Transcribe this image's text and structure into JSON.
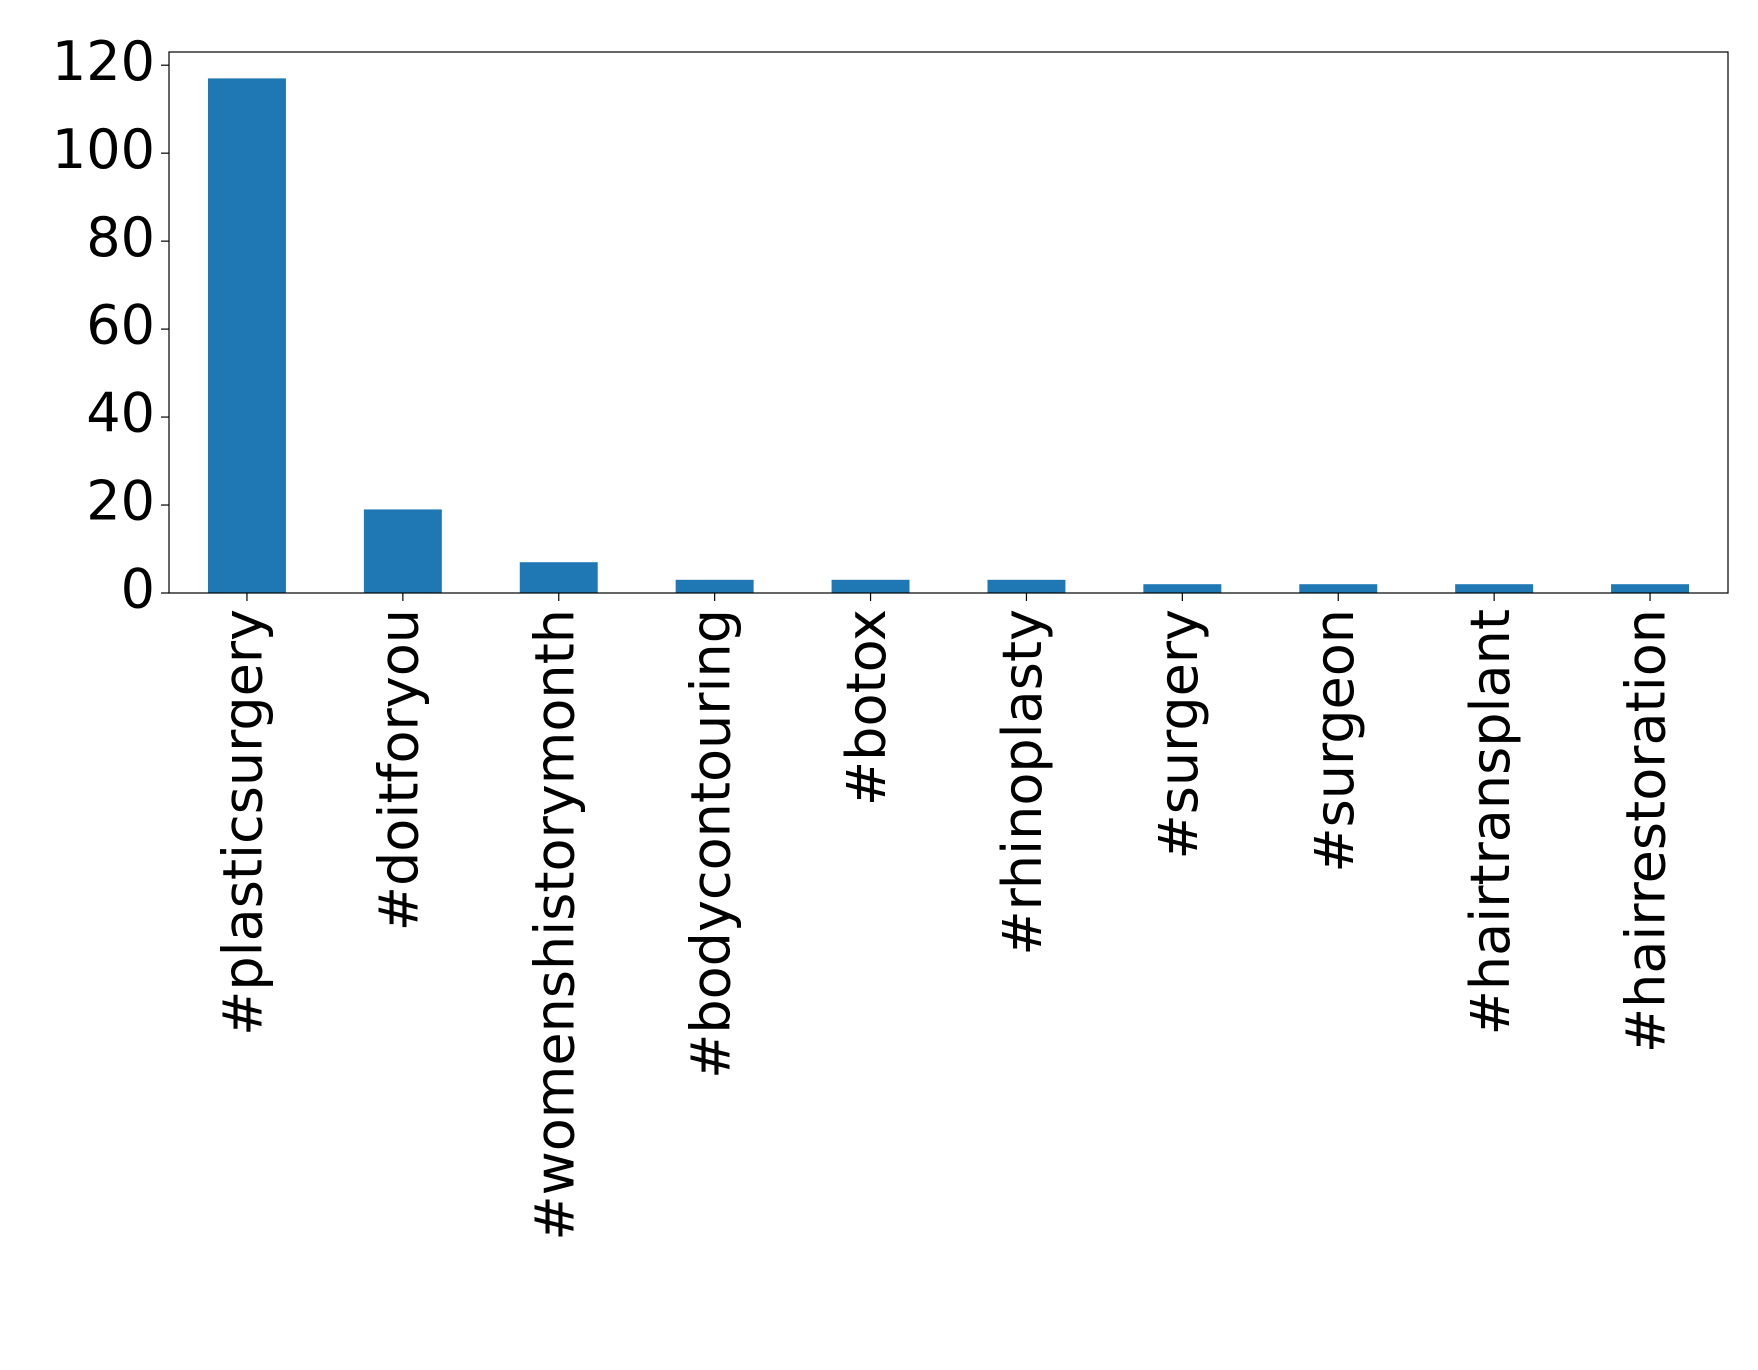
{
  "chart_data": {
    "type": "bar",
    "categories": [
      "#plasticsurgery",
      "#doitforyou",
      "#womenshistorymonth",
      "#bodycontouring",
      "#botox",
      "#rhinoplasty",
      "#surgery",
      "#surgeon",
      "#hairtransplant",
      "#hairrestoration"
    ],
    "values": [
      117,
      19,
      7,
      3,
      3,
      3,
      2,
      2,
      2,
      2
    ],
    "color": "#1f77b4",
    "ylim": [
      0,
      123
    ],
    "yticks": [
      0,
      20,
      40,
      60,
      80,
      100,
      120
    ],
    "grid": false
  }
}
